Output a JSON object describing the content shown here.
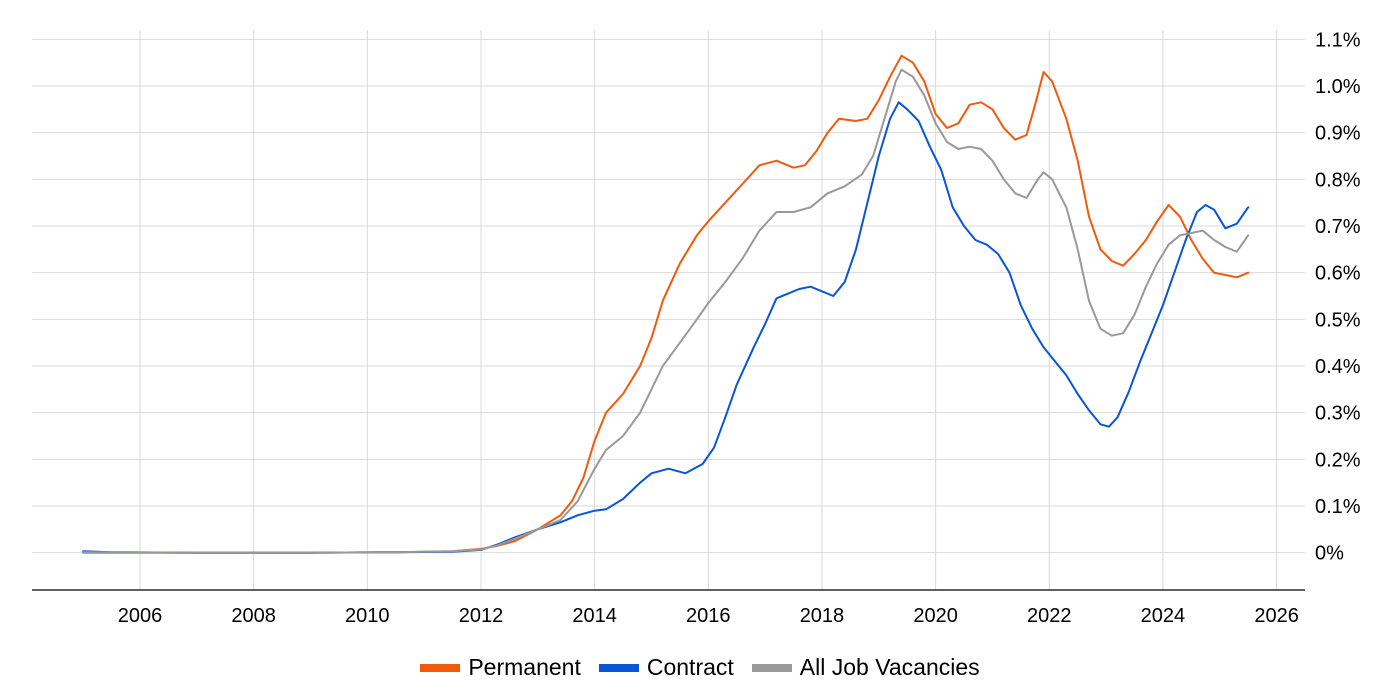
{
  "chart_data": {
    "type": "line",
    "title": "",
    "xlabel": "",
    "ylabel": "",
    "xlim": [
      2004.1,
      2026.5
    ],
    "ylim": [
      -0.08,
      1.12
    ],
    "grid": true,
    "legend_position": "bottom",
    "x_ticks": [
      2006,
      2008,
      2010,
      2012,
      2014,
      2016,
      2018,
      2020,
      2022,
      2024,
      2026
    ],
    "x_tick_labels": [
      "2006",
      "2008",
      "2010",
      "2012",
      "2014",
      "2016",
      "2018",
      "2020",
      "2022",
      "2024",
      "2026"
    ],
    "y_ticks": [
      0,
      0.1,
      0.2,
      0.3,
      0.4,
      0.5,
      0.6,
      0.7,
      0.8,
      0.9,
      1.0,
      1.1
    ],
    "y_tick_labels": [
      "0%",
      "0.1%",
      "0.2%",
      "0.3%",
      "0.4%",
      "0.5%",
      "0.6%",
      "0.7%",
      "0.8%",
      "0.9%",
      "1.0%",
      "1.1%"
    ],
    "series": [
      {
        "name": "Permanent",
        "color": "#f05a0a",
        "points": [
          [
            2005.0,
            0.0
          ],
          [
            2007.0,
            0.0
          ],
          [
            2009.0,
            0.0
          ],
          [
            2010.5,
            0.001
          ],
          [
            2011.5,
            0.003
          ],
          [
            2012.0,
            0.008
          ],
          [
            2012.3,
            0.015
          ],
          [
            2012.6,
            0.025
          ],
          [
            2013.0,
            0.05
          ],
          [
            2013.4,
            0.08
          ],
          [
            2013.6,
            0.11
          ],
          [
            2013.8,
            0.16
          ],
          [
            2014.0,
            0.24
          ],
          [
            2014.2,
            0.3
          ],
          [
            2014.5,
            0.34
          ],
          [
            2014.8,
            0.4
          ],
          [
            2015.0,
            0.46
          ],
          [
            2015.2,
            0.54
          ],
          [
            2015.5,
            0.62
          ],
          [
            2015.8,
            0.68
          ],
          [
            2016.0,
            0.71
          ],
          [
            2016.3,
            0.75
          ],
          [
            2016.6,
            0.79
          ],
          [
            2016.9,
            0.83
          ],
          [
            2017.2,
            0.84
          ],
          [
            2017.5,
            0.825
          ],
          [
            2017.7,
            0.83
          ],
          [
            2017.9,
            0.86
          ],
          [
            2018.1,
            0.9
          ],
          [
            2018.3,
            0.93
          ],
          [
            2018.6,
            0.925
          ],
          [
            2018.8,
            0.93
          ],
          [
            2019.0,
            0.97
          ],
          [
            2019.2,
            1.02
          ],
          [
            2019.4,
            1.065
          ],
          [
            2019.6,
            1.05
          ],
          [
            2019.8,
            1.01
          ],
          [
            2020.0,
            0.94
          ],
          [
            2020.2,
            0.91
          ],
          [
            2020.4,
            0.92
          ],
          [
            2020.6,
            0.96
          ],
          [
            2020.8,
            0.965
          ],
          [
            2021.0,
            0.95
          ],
          [
            2021.2,
            0.91
          ],
          [
            2021.4,
            0.885
          ],
          [
            2021.6,
            0.895
          ],
          [
            2021.75,
            0.96
          ],
          [
            2021.9,
            1.03
          ],
          [
            2022.05,
            1.01
          ],
          [
            2022.3,
            0.93
          ],
          [
            2022.5,
            0.84
          ],
          [
            2022.7,
            0.72
          ],
          [
            2022.9,
            0.65
          ],
          [
            2023.1,
            0.625
          ],
          [
            2023.3,
            0.615
          ],
          [
            2023.5,
            0.64
          ],
          [
            2023.7,
            0.67
          ],
          [
            2023.9,
            0.71
          ],
          [
            2024.1,
            0.745
          ],
          [
            2024.3,
            0.72
          ],
          [
            2024.5,
            0.67
          ],
          [
            2024.7,
            0.63
          ],
          [
            2024.9,
            0.6
          ],
          [
            2025.1,
            0.595
          ],
          [
            2025.3,
            0.59
          ],
          [
            2025.5,
            0.6
          ]
        ]
      },
      {
        "name": "Contract",
        "color": "#0a55d6",
        "points": [
          [
            2005.0,
            0.003
          ],
          [
            2005.5,
            0.001
          ],
          [
            2007.0,
            0.0
          ],
          [
            2009.0,
            0.0
          ],
          [
            2010.5,
            0.001
          ],
          [
            2011.5,
            0.002
          ],
          [
            2012.0,
            0.006
          ],
          [
            2012.3,
            0.018
          ],
          [
            2012.6,
            0.033
          ],
          [
            2013.0,
            0.05
          ],
          [
            2013.4,
            0.065
          ],
          [
            2013.7,
            0.08
          ],
          [
            2014.0,
            0.09
          ],
          [
            2014.2,
            0.093
          ],
          [
            2014.5,
            0.115
          ],
          [
            2014.8,
            0.15
          ],
          [
            2015.0,
            0.17
          ],
          [
            2015.3,
            0.18
          ],
          [
            2015.6,
            0.17
          ],
          [
            2015.9,
            0.19
          ],
          [
            2016.1,
            0.225
          ],
          [
            2016.3,
            0.29
          ],
          [
            2016.5,
            0.36
          ],
          [
            2016.8,
            0.44
          ],
          [
            2017.0,
            0.49
          ],
          [
            2017.2,
            0.545
          ],
          [
            2017.4,
            0.555
          ],
          [
            2017.6,
            0.565
          ],
          [
            2017.8,
            0.57
          ],
          [
            2018.0,
            0.56
          ],
          [
            2018.2,
            0.55
          ],
          [
            2018.4,
            0.58
          ],
          [
            2018.6,
            0.65
          ],
          [
            2018.8,
            0.75
          ],
          [
            2019.0,
            0.85
          ],
          [
            2019.2,
            0.93
          ],
          [
            2019.35,
            0.965
          ],
          [
            2019.5,
            0.95
          ],
          [
            2019.7,
            0.925
          ],
          [
            2019.9,
            0.87
          ],
          [
            2020.1,
            0.82
          ],
          [
            2020.3,
            0.74
          ],
          [
            2020.5,
            0.7
          ],
          [
            2020.7,
            0.67
          ],
          [
            2020.9,
            0.66
          ],
          [
            2021.1,
            0.64
          ],
          [
            2021.3,
            0.6
          ],
          [
            2021.5,
            0.53
          ],
          [
            2021.7,
            0.48
          ],
          [
            2021.9,
            0.44
          ],
          [
            2022.1,
            0.41
          ],
          [
            2022.3,
            0.38
          ],
          [
            2022.5,
            0.34
          ],
          [
            2022.7,
            0.305
          ],
          [
            2022.9,
            0.275
          ],
          [
            2023.05,
            0.27
          ],
          [
            2023.2,
            0.29
          ],
          [
            2023.4,
            0.345
          ],
          [
            2023.6,
            0.41
          ],
          [
            2023.8,
            0.47
          ],
          [
            2024.0,
            0.53
          ],
          [
            2024.2,
            0.6
          ],
          [
            2024.4,
            0.67
          ],
          [
            2024.6,
            0.73
          ],
          [
            2024.75,
            0.745
          ],
          [
            2024.9,
            0.735
          ],
          [
            2025.1,
            0.695
          ],
          [
            2025.3,
            0.705
          ],
          [
            2025.5,
            0.74
          ]
        ]
      },
      {
        "name": "All Job Vacancies",
        "color": "#999999",
        "points": [
          [
            2005.0,
            0.001
          ],
          [
            2007.0,
            0.0
          ],
          [
            2009.0,
            0.0
          ],
          [
            2010.5,
            0.001
          ],
          [
            2011.5,
            0.003
          ],
          [
            2012.0,
            0.007
          ],
          [
            2012.3,
            0.016
          ],
          [
            2012.6,
            0.03
          ],
          [
            2013.0,
            0.05
          ],
          [
            2013.4,
            0.07
          ],
          [
            2013.7,
            0.11
          ],
          [
            2014.0,
            0.18
          ],
          [
            2014.2,
            0.22
          ],
          [
            2014.5,
            0.25
          ],
          [
            2014.8,
            0.3
          ],
          [
            2015.0,
            0.35
          ],
          [
            2015.2,
            0.4
          ],
          [
            2015.5,
            0.45
          ],
          [
            2015.8,
            0.5
          ],
          [
            2016.0,
            0.535
          ],
          [
            2016.3,
            0.58
          ],
          [
            2016.6,
            0.63
          ],
          [
            2016.9,
            0.69
          ],
          [
            2017.2,
            0.73
          ],
          [
            2017.5,
            0.73
          ],
          [
            2017.8,
            0.74
          ],
          [
            2018.1,
            0.77
          ],
          [
            2018.4,
            0.785
          ],
          [
            2018.7,
            0.81
          ],
          [
            2018.9,
            0.85
          ],
          [
            2019.1,
            0.93
          ],
          [
            2019.3,
            1.01
          ],
          [
            2019.4,
            1.035
          ],
          [
            2019.6,
            1.02
          ],
          [
            2019.8,
            0.98
          ],
          [
            2020.0,
            0.92
          ],
          [
            2020.2,
            0.88
          ],
          [
            2020.4,
            0.865
          ],
          [
            2020.6,
            0.87
          ],
          [
            2020.8,
            0.865
          ],
          [
            2021.0,
            0.84
          ],
          [
            2021.2,
            0.8
          ],
          [
            2021.4,
            0.77
          ],
          [
            2021.6,
            0.76
          ],
          [
            2021.8,
            0.8
          ],
          [
            2021.9,
            0.815
          ],
          [
            2022.05,
            0.8
          ],
          [
            2022.3,
            0.74
          ],
          [
            2022.5,
            0.65
          ],
          [
            2022.7,
            0.54
          ],
          [
            2022.9,
            0.48
          ],
          [
            2023.1,
            0.465
          ],
          [
            2023.3,
            0.47
          ],
          [
            2023.5,
            0.51
          ],
          [
            2023.7,
            0.57
          ],
          [
            2023.9,
            0.62
          ],
          [
            2024.1,
            0.66
          ],
          [
            2024.3,
            0.68
          ],
          [
            2024.5,
            0.685
          ],
          [
            2024.7,
            0.69
          ],
          [
            2024.9,
            0.67
          ],
          [
            2025.1,
            0.655
          ],
          [
            2025.3,
            0.645
          ],
          [
            2025.5,
            0.68
          ]
        ]
      }
    ]
  },
  "legend": {
    "items": [
      {
        "label": "Permanent",
        "color": "#f05a0a"
      },
      {
        "label": "Contract",
        "color": "#0a55d6"
      },
      {
        "label": "All Job Vacancies",
        "color": "#999999"
      }
    ]
  }
}
